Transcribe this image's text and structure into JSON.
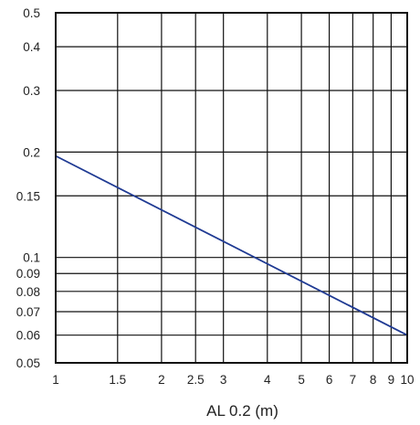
{
  "chart_data": {
    "type": "line",
    "title": "",
    "xlabel": "AL 0.2 (m)",
    "ylabel": "",
    "x_scale": "log",
    "y_scale": "log",
    "xlim": [
      1,
      10
    ],
    "ylim": [
      0.05,
      0.5
    ],
    "grid": true,
    "x_ticks": [
      1,
      1.5,
      2,
      2.5,
      3,
      4,
      5,
      6,
      7,
      8,
      9,
      10
    ],
    "x_tick_labels": [
      "1",
      "1.5",
      "2",
      "2.5",
      "3",
      "4",
      "5",
      "6",
      "7",
      "8",
      "9",
      "10"
    ],
    "y_ticks": [
      0.05,
      0.06,
      0.07,
      0.08,
      0.09,
      0.1,
      0.15,
      0.2,
      0.3,
      0.4,
      0.5
    ],
    "y_tick_labels": [
      "0.05",
      "0.06",
      "0.07",
      "0.08",
      "0.09",
      "0.1",
      "0.15",
      "0.2",
      "0.3",
      "0.4",
      "0.5"
    ],
    "series": [
      {
        "x": [
          1,
          10
        ],
        "y": [
          0.195,
          0.06
        ]
      }
    ],
    "colors": {
      "line": "#1f3a93",
      "grid": "#111111"
    }
  }
}
